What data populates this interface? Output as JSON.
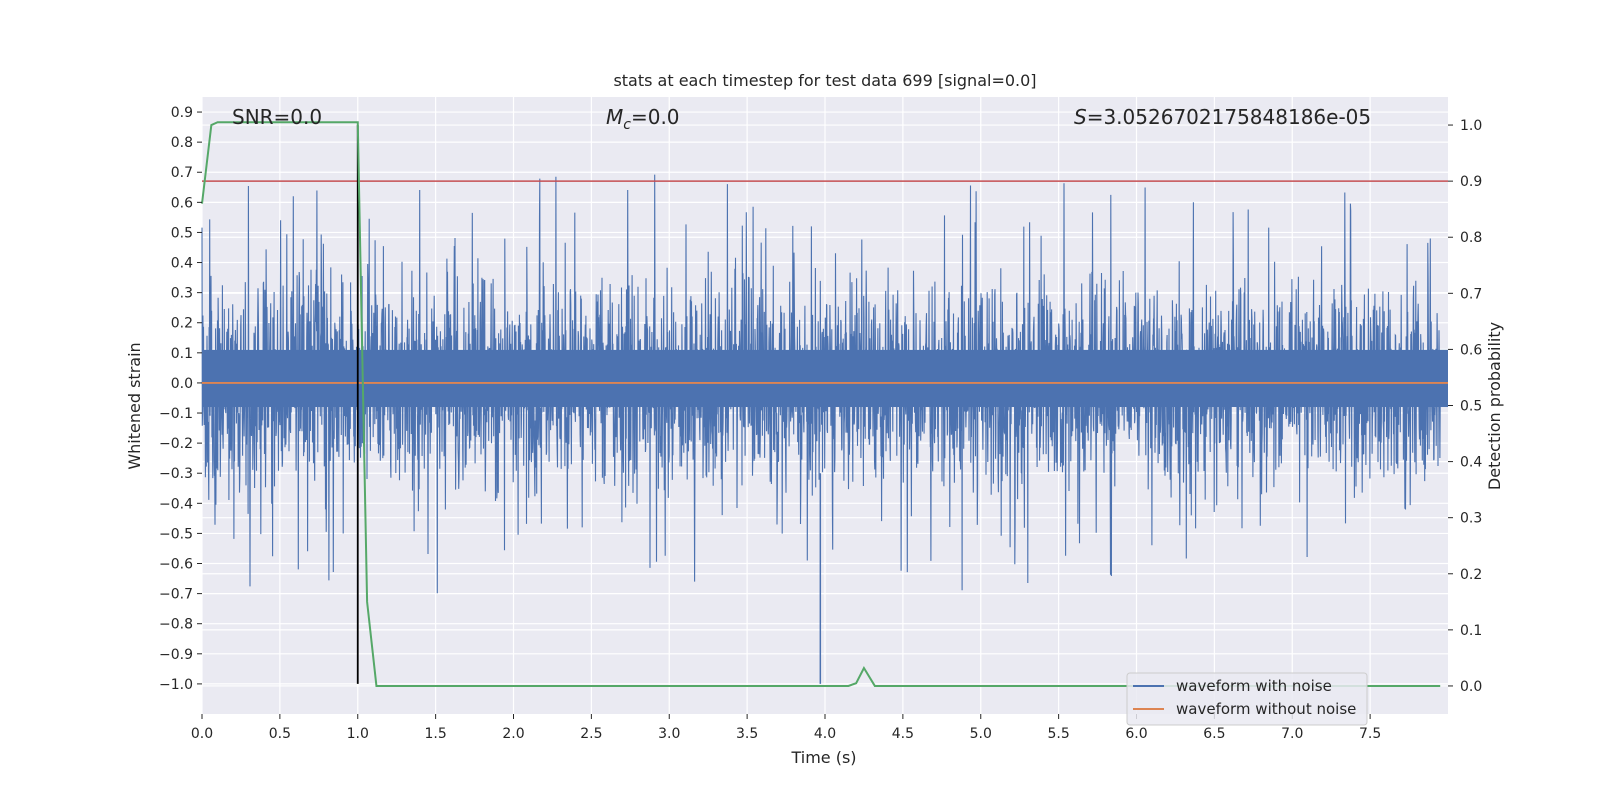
{
  "chart_data": {
    "type": "line",
    "title": "stats at each timestep for test data 699 [signal=0.0]",
    "xlabel": "Time (s)",
    "ylabel_left": "Whitened strain",
    "ylabel_right": "Detection probability",
    "xlim": [
      0.0,
      8.0
    ],
    "ylim_left": [
      -1.1,
      0.95
    ],
    "ylim_right": [
      -0.05,
      1.05
    ],
    "x_ticks": [
      0.0,
      0.5,
      1.0,
      1.5,
      2.0,
      2.5,
      3.0,
      3.5,
      4.0,
      4.5,
      5.0,
      5.5,
      6.0,
      6.5,
      7.0,
      7.5
    ],
    "x_tick_labels": [
      "0.0",
      "0.5",
      "1.0",
      "1.5",
      "2.0",
      "2.5",
      "3.0",
      "3.5",
      "4.0",
      "4.5",
      "5.0",
      "5.5",
      "6.0",
      "6.5",
      "7.0",
      "7.5"
    ],
    "y_left_ticks": [
      0.9,
      0.8,
      0.7,
      0.6,
      0.5,
      0.4,
      0.3,
      0.2,
      0.1,
      0.0,
      -0.1,
      -0.2,
      -0.3,
      -0.4,
      -0.5,
      -0.6,
      -0.7,
      -0.8,
      -0.9,
      -1.0
    ],
    "y_left_tick_labels": [
      "0.9",
      "0.8",
      "0.7",
      "0.6",
      "0.5",
      "0.4",
      "0.3",
      "0.2",
      "0.1",
      "0.0",
      "−0.1",
      "−0.2",
      "−0.3",
      "−0.4",
      "−0.5",
      "−0.6",
      "−0.7",
      "−0.8",
      "−0.9",
      "−1.0"
    ],
    "y_right_ticks": [
      1.0,
      0.9,
      0.8,
      0.7,
      0.6,
      0.5,
      0.4,
      0.3,
      0.2,
      0.1,
      0.0
    ],
    "y_right_tick_labels": [
      "1.0",
      "0.9",
      "0.8",
      "0.7",
      "0.6",
      "0.5",
      "0.4",
      "0.3",
      "0.2",
      "0.1",
      "0.0"
    ],
    "annotations": {
      "snr": "SNR=0.0",
      "mc_symbol": "M",
      "mc_sub": "c",
      "mc_value": "=0.0",
      "s_symbol": "S",
      "s_value": "=3.0526702175848186e-05"
    },
    "threshold": 0.9,
    "marker_time": 1.0,
    "noise_waveform": {
      "name": "waveform with noise",
      "color": "#4c72b0",
      "dense_band": [
        -0.08,
        0.11
      ],
      "samples_hint": "dense random noise, peaks near ±0.5, extremes ~0.85 and ~-1.0"
    },
    "series": [
      {
        "name": "waveform without noise",
        "color": "#dd8452",
        "x": [
          0.0,
          8.0
        ],
        "y": [
          0.0,
          0.0
        ]
      },
      {
        "name": "detection probability",
        "color": "#55a868",
        "axis": "right",
        "x": [
          0.0,
          0.03,
          0.06,
          0.1,
          0.2,
          0.5,
          0.8,
          1.0,
          1.06,
          1.12,
          2.0,
          3.0,
          4.0,
          4.15,
          4.2,
          4.25,
          4.32,
          5.0,
          6.0,
          7.0,
          7.95
        ],
        "y": [
          0.86,
          0.93,
          1.0,
          1.005,
          1.005,
          1.005,
          1.005,
          1.005,
          0.15,
          0.0,
          0.0,
          0.0,
          0.0,
          0.0,
          0.005,
          0.032,
          0.0,
          0.0,
          0.0,
          0.0,
          0.0
        ]
      }
    ],
    "legend": {
      "position": "lower-right",
      "entries": [
        {
          "label": "waveform with noise",
          "color": "#4c72b0"
        },
        {
          "label": "waveform without noise",
          "color": "#dd8452"
        }
      ]
    },
    "colors": {
      "plot_bg": "#eaeaf2",
      "grid": "#ffffff",
      "threshold": "#c44e52",
      "marker": "#000000"
    }
  }
}
